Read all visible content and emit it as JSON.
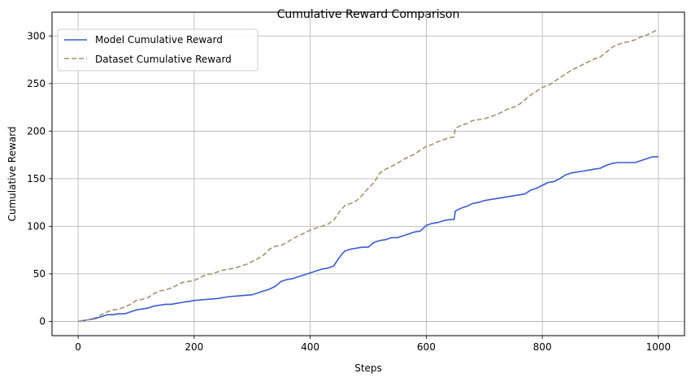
{
  "chart_data": {
    "type": "line",
    "title": "Cumulative Reward Comparison",
    "xlabel": "Steps",
    "ylabel": "Cumulative Reward",
    "xlim": [
      -45,
      1045
    ],
    "ylim": [
      -15,
      325
    ],
    "xticks": [
      0,
      200,
      400,
      600,
      800,
      1000
    ],
    "yticks": [
      0,
      50,
      100,
      150,
      200,
      250,
      300
    ],
    "grid": true,
    "legend_position": "top-left",
    "series": [
      {
        "name": "Model Cumulative Reward",
        "color": "#3a5bd1",
        "style": "solid",
        "x": [
          0,
          10,
          20,
          30,
          40,
          50,
          60,
          70,
          80,
          90,
          100,
          110,
          120,
          130,
          140,
          150,
          160,
          170,
          180,
          190,
          200,
          220,
          240,
          260,
          280,
          300,
          310,
          320,
          330,
          340,
          350,
          360,
          370,
          380,
          390,
          400,
          410,
          420,
          430,
          440,
          450,
          455,
          460,
          470,
          480,
          490,
          500,
          510,
          520,
          530,
          540,
          550,
          560,
          570,
          580,
          590,
          600,
          610,
          620,
          630,
          640,
          648,
          650,
          660,
          670,
          680,
          690,
          700,
          710,
          720,
          730,
          740,
          750,
          760,
          770,
          780,
          790,
          800,
          810,
          820,
          830,
          840,
          850,
          860,
          870,
          880,
          890,
          900,
          910,
          920,
          930,
          940,
          950,
          960,
          970,
          980,
          990,
          1000
        ],
        "y": [
          0,
          1,
          2,
          3,
          5,
          7,
          7,
          8,
          8,
          10,
          12,
          13,
          14,
          16,
          17,
          18,
          18,
          19,
          20,
          21,
          22,
          23,
          24,
          26,
          27,
          28,
          30,
          32,
          34,
          37,
          42,
          44,
          45,
          47,
          49,
          51,
          53,
          55,
          56,
          58,
          67,
          71,
          74,
          76,
          77,
          78,
          78,
          83,
          85,
          86,
          88,
          88,
          90,
          92,
          94,
          95,
          101,
          103,
          104,
          106,
          107,
          107,
          116,
          119,
          121,
          124,
          125,
          127,
          128,
          129,
          130,
          131,
          132,
          133,
          134,
          138,
          140,
          143,
          146,
          147,
          150,
          154,
          156,
          157,
          158,
          159,
          160,
          161,
          164,
          166,
          167,
          167,
          167,
          167,
          169,
          171,
          173,
          173
        ]
      },
      {
        "name": "Dataset Cumulative Reward",
        "color": "#a8936e",
        "style": "dashed",
        "x": [
          0,
          10,
          20,
          30,
          40,
          50,
          60,
          70,
          80,
          90,
          100,
          110,
          120,
          130,
          140,
          150,
          160,
          170,
          180,
          190,
          200,
          210,
          220,
          230,
          240,
          250,
          260,
          270,
          280,
          290,
          300,
          310,
          320,
          330,
          340,
          350,
          360,
          370,
          380,
          390,
          400,
          410,
          420,
          430,
          440,
          450,
          460,
          470,
          480,
          490,
          500,
          510,
          520,
          530,
          540,
          550,
          560,
          570,
          580,
          590,
          600,
          610,
          620,
          630,
          640,
          648,
          650,
          660,
          670,
          680,
          690,
          700,
          710,
          720,
          730,
          740,
          750,
          760,
          770,
          780,
          790,
          800,
          810,
          820,
          830,
          840,
          850,
          860,
          870,
          880,
          890,
          900,
          910,
          920,
          930,
          940,
          950,
          960,
          970,
          980,
          990,
          1000
        ],
        "y": [
          0,
          1,
          2,
          4,
          7,
          10,
          12,
          13,
          15,
          18,
          22,
          23,
          25,
          29,
          32,
          33,
          35,
          38,
          41,
          42,
          43,
          46,
          49,
          50,
          52,
          54,
          55,
          56,
          58,
          60,
          63,
          66,
          70,
          76,
          79,
          80,
          83,
          87,
          90,
          93,
          96,
          98,
          100,
          102,
          106,
          115,
          122,
          124,
          127,
          133,
          140,
          146,
          156,
          160,
          163,
          166,
          170,
          173,
          176,
          180,
          184,
          186,
          189,
          191,
          193,
          194,
          203,
          206,
          208,
          211,
          212,
          213,
          215,
          217,
          220,
          223,
          225,
          228,
          233,
          238,
          242,
          246,
          248,
          252,
          256,
          260,
          264,
          267,
          270,
          273,
          276,
          278,
          283,
          288,
          291,
          293,
          294,
          296,
          299,
          301,
          304,
          307
        ]
      }
    ]
  }
}
